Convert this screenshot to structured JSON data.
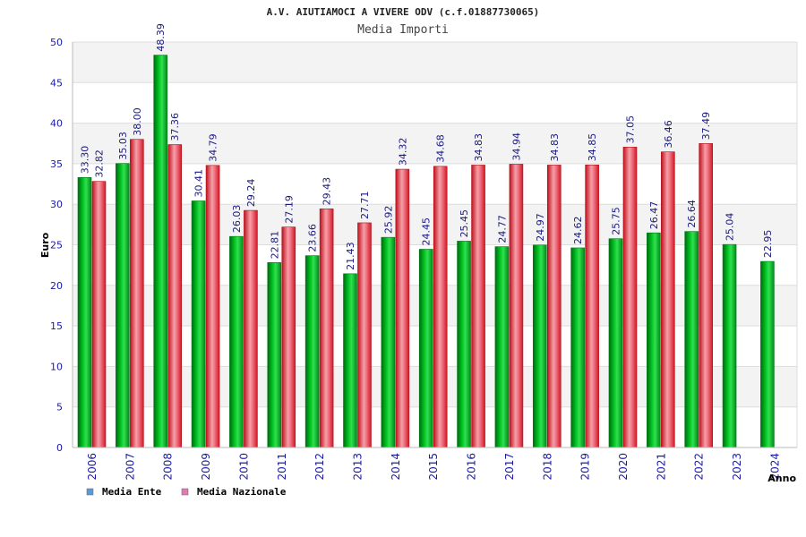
{
  "chart_data": {
    "type": "bar",
    "title": "A.V. AIUTIAMOCI A VIVERE ODV (c.f.01887730065)",
    "subtitle": "Media Importi",
    "ylabel": "Euro",
    "xlabel": "Anno",
    "ylim": [
      0,
      50
    ],
    "yticks": [
      0,
      5,
      10,
      15,
      20,
      25,
      30,
      35,
      40,
      45,
      50
    ],
    "grid": true,
    "legend_position": "bottom-left",
    "categories": [
      "2006",
      "2007",
      "2008",
      "2009",
      "2010",
      "2011",
      "2012",
      "2013",
      "2014",
      "2015",
      "2016",
      "2017",
      "2018",
      "2019",
      "2020",
      "2021",
      "2022",
      "2023",
      "2024"
    ],
    "series": [
      {
        "name": "Media Ente",
        "legend_color": "#5b9bd5",
        "bar_color": "#00b020",
        "values": [
          33.3,
          35.03,
          48.39,
          30.41,
          26.03,
          22.81,
          23.66,
          21.43,
          25.92,
          24.45,
          25.45,
          24.77,
          24.97,
          24.62,
          25.75,
          26.47,
          26.64,
          25.04,
          22.95
        ],
        "labels": [
          "33.30",
          "35.03",
          "48.39",
          "30.41",
          "26.03",
          "22.81",
          "23.66",
          "21.43",
          "25.92",
          "24.45",
          "25.45",
          "24.77",
          "24.97",
          "24.62",
          "25.75",
          "26.47",
          "26.64",
          "25.04",
          "22.95"
        ]
      },
      {
        "name": "Media Nazionale",
        "legend_color": "#e07ab0",
        "bar_color": "#e8202c",
        "values": [
          32.82,
          38.0,
          37.36,
          34.79,
          29.24,
          27.19,
          29.43,
          27.71,
          34.32,
          34.68,
          34.83,
          34.94,
          34.83,
          34.85,
          37.05,
          36.46,
          37.49,
          null,
          null
        ],
        "labels": [
          "32.82",
          "38.00",
          "37.36",
          "34.79",
          "29.24",
          "27.19",
          "29.43",
          "27.71",
          "34.32",
          "34.68",
          "34.83",
          "34.94",
          "34.83",
          "34.85",
          "37.05",
          "36.46",
          "37.49",
          "",
          ""
        ]
      }
    ]
  }
}
